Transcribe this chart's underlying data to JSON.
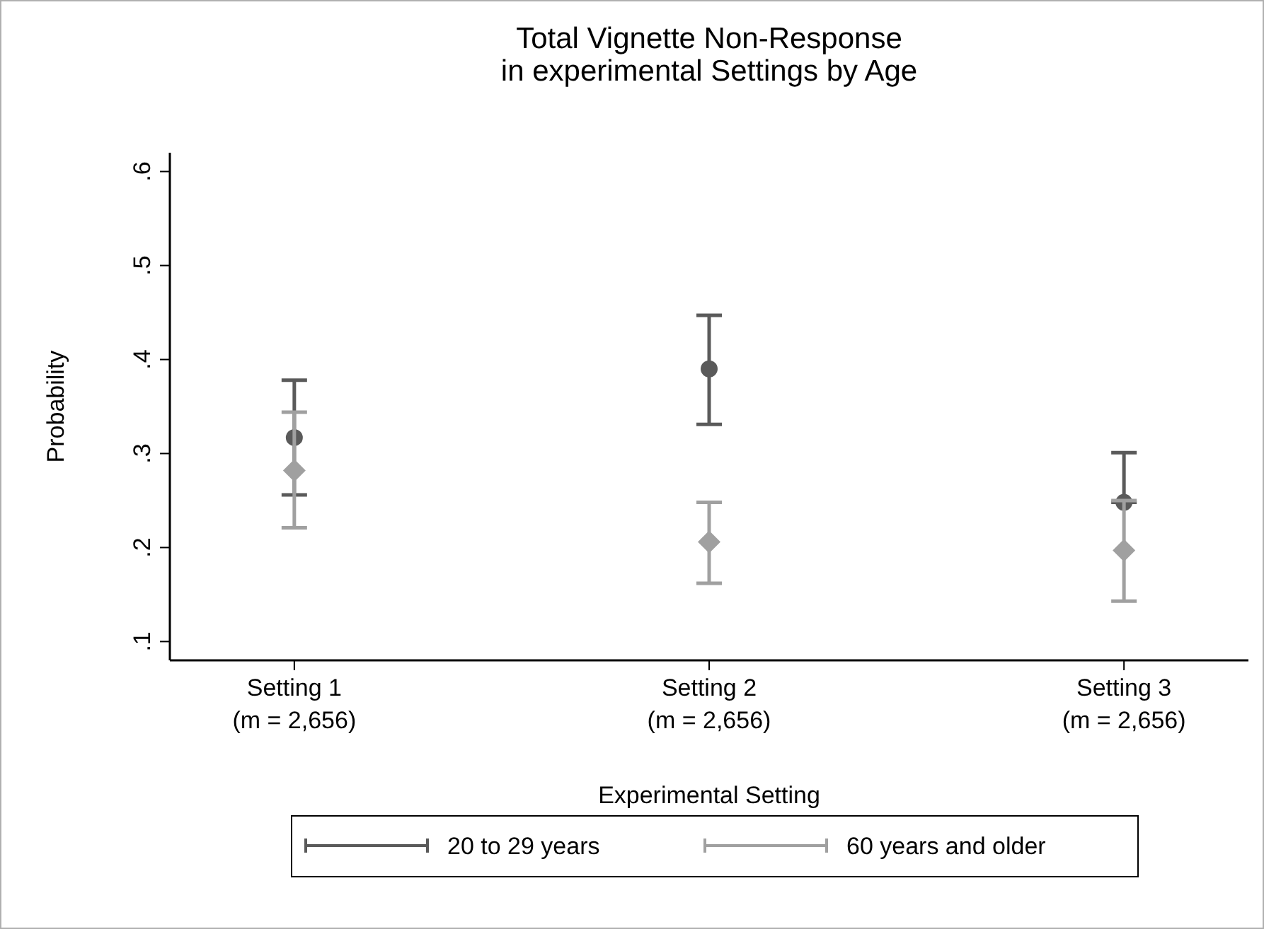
{
  "chart_data": {
    "type": "scatter",
    "title": "Total Vignette Non-Response\nin experimental Settings by Age",
    "xlabel": "Experimental Setting",
    "ylabel": "Probability",
    "categories": [
      "Setting 1\n(m = 2,656)",
      "Setting 2\n(m = 2,656)",
      "Setting 3\n(m = 2,656)"
    ],
    "ylim": [
      0.08,
      0.62
    ],
    "yticks": [
      {
        "value": 0.1,
        "label": ".1"
      },
      {
        "value": 0.2,
        "label": ".2"
      },
      {
        "value": 0.3,
        "label": ".3"
      },
      {
        "value": 0.4,
        "label": ".4"
      },
      {
        "value": 0.5,
        "label": ".5"
      },
      {
        "value": 0.6,
        "label": ".6"
      }
    ],
    "grid": false,
    "legend": "bottom",
    "series": [
      {
        "name": "20 to 29 years",
        "color": "#5a5a5a",
        "marker": "circle",
        "values": [
          0.317,
          0.39,
          0.248
        ],
        "errors": [
          [
            0.256,
            0.378
          ],
          [
            0.331,
            0.447
          ],
          [
            0.248,
            0.301
          ]
        ]
      },
      {
        "name": "60 years and older",
        "color": "#a0a0a0",
        "marker": "diamond",
        "values": [
          0.282,
          0.206,
          0.197
        ],
        "errors": [
          [
            0.221,
            0.344
          ],
          [
            0.162,
            0.248
          ],
          [
            0.143,
            0.25
          ]
        ]
      }
    ]
  }
}
